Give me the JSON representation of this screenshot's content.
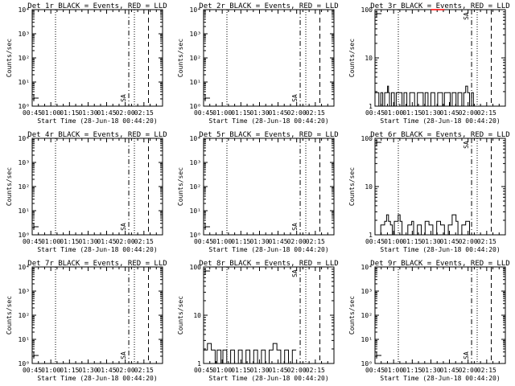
{
  "chart_data": [
    {
      "type": "line",
      "title": "Det 1r BLACK = Events, RED = LLD",
      "scale": "log",
      "yticks": [
        "10⁰",
        "10¹",
        "10²",
        "10³",
        "10⁴"
      ],
      "ylabel": "Counts/sec",
      "xlabel": "Start Time (28-Jun-18 00:44:20)",
      "xticks": [
        "00:45",
        "01:00",
        "01:15",
        "01:30",
        "01:45",
        "02:00",
        "02:15"
      ],
      "saa_label": "SA",
      "series": []
    },
    {
      "type": "line",
      "title": "Det 2r BLACK = Events, RED = LLD",
      "scale": "log",
      "yticks": [
        "10⁰",
        "10¹",
        "10²",
        "10³",
        "10⁴"
      ],
      "ylabel": "Counts/sec",
      "xlabel": "Start Time (28-Jun-18 00:44:20)",
      "xticks": [
        "00:45",
        "01:00",
        "01:15",
        "01:30",
        "01:45",
        "02:00",
        "02:15"
      ],
      "saa_label": "SA",
      "series": []
    },
    {
      "type": "line",
      "title": "Det 3r BLACK = Events, RED = LLD",
      "scale": "log",
      "yticks": [
        "1",
        "10",
        "100"
      ],
      "ylabel": "Counts/sec",
      "xlabel": "Start Time (28-Jun-18 00:44:20)",
      "xticks": [
        "00:45",
        "01:00",
        "01:15",
        "01:30",
        "01:45",
        "02:00",
        "02:15"
      ],
      "saa_label": "SA",
      "series": [
        {
          "color": "#000000",
          "points": [
            [
              0,
              1.9
            ],
            [
              3,
              1.9
            ],
            [
              4,
              1
            ],
            [
              6,
              1.9
            ],
            [
              8,
              1
            ],
            [
              10,
              1.9
            ],
            [
              13,
              2.6
            ],
            [
              14,
              1.9
            ],
            [
              15,
              1
            ],
            [
              17,
              1.9
            ],
            [
              20,
              1
            ],
            [
              22,
              1.9
            ],
            [
              26,
              1.9
            ],
            [
              28,
              1
            ],
            [
              30,
              1.9
            ],
            [
              33,
              1
            ],
            [
              36,
              1.9
            ],
            [
              39,
              1.9
            ],
            [
              41,
              1
            ],
            [
              44,
              1.9
            ],
            [
              48,
              1.9
            ],
            [
              50,
              1
            ],
            [
              52,
              1.9
            ],
            [
              55,
              1
            ],
            [
              58,
              1.9
            ],
            [
              62,
              1
            ],
            [
              65,
              1.9
            ],
            [
              68,
              1.9
            ],
            [
              70,
              1
            ],
            [
              72,
              1.9
            ],
            [
              76,
              1.9
            ],
            [
              78,
              1
            ],
            [
              80,
              1.9
            ],
            [
              84,
              1
            ],
            [
              86,
              1.9
            ],
            [
              90,
              1
            ],
            [
              92,
              1.9
            ],
            [
              94,
              2.6
            ],
            [
              96,
              1.9
            ],
            [
              98,
              1
            ],
            [
              100,
              1.9
            ],
            [
              102,
              1
            ]
          ]
        },
        {
          "color": "#ff0000",
          "points": [
            [
              58,
              100
            ],
            [
              72,
              100
            ]
          ]
        }
      ]
    },
    {
      "type": "line",
      "title": "Det 4r BLACK = Events, RED = LLD",
      "scale": "log",
      "yticks": [
        "10⁰",
        "10¹",
        "10²",
        "10³",
        "10⁴"
      ],
      "ylabel": "Counts/sec",
      "xlabel": "Start Time (28-Jun-18 00:44:20)",
      "xticks": [
        "00:45",
        "01:00",
        "01:15",
        "01:30",
        "01:45",
        "02:00",
        "02:15"
      ],
      "saa_label": "SA",
      "series": []
    },
    {
      "type": "line",
      "title": "Det 5r BLACK = Events, RED = LLD",
      "scale": "log",
      "yticks": [
        "10⁰",
        "10¹",
        "10²",
        "10³",
        "10⁴"
      ],
      "ylabel": "Counts/sec",
      "xlabel": "Start Time (28-Jun-18 00:44:20)",
      "xticks": [
        "00:45",
        "01:00",
        "01:15",
        "01:30",
        "01:45",
        "02:00",
        "02:15"
      ],
      "saa_label": "SA",
      "series": []
    },
    {
      "type": "line",
      "title": "Det 6r BLACK = Events, RED = LLD",
      "scale": "log",
      "yticks": [
        "1",
        "10",
        "100"
      ],
      "ylabel": "Counts/sec",
      "xlabel": "Start Time (28-Jun-18 00:44:20)",
      "xticks": [
        "00:45",
        "01:00",
        "01:15",
        "01:30",
        "01:45",
        "02:00",
        "02:15"
      ],
      "saa_label": "SA",
      "series": [
        {
          "color": "#000000",
          "points": [
            [
              0,
              1
            ],
            [
              4,
              1
            ],
            [
              6,
              1.6
            ],
            [
              10,
              1.9
            ],
            [
              12,
              2.6
            ],
            [
              14,
              1.9
            ],
            [
              16,
              1.6
            ],
            [
              18,
              1
            ],
            [
              20,
              1.9
            ],
            [
              24,
              2.6
            ],
            [
              26,
              1.9
            ],
            [
              28,
              1
            ],
            [
              32,
              1
            ],
            [
              34,
              1.6
            ],
            [
              38,
              1.9
            ],
            [
              40,
              1
            ],
            [
              44,
              1.6
            ],
            [
              48,
              1
            ],
            [
              52,
              1.9
            ],
            [
              56,
              1.6
            ],
            [
              60,
              1
            ],
            [
              64,
              1.9
            ],
            [
              68,
              1.6
            ],
            [
              72,
              1
            ],
            [
              76,
              1.6
            ],
            [
              80,
              2.6
            ],
            [
              84,
              1.9
            ],
            [
              86,
              1
            ],
            [
              90,
              1.6
            ],
            [
              94,
              1.9
            ],
            [
              98,
              1
            ]
          ]
        }
      ]
    },
    {
      "type": "line",
      "title": "Det 7r BLACK = Events, RED = LLD",
      "scale": "log",
      "yticks": [
        "10⁰",
        "10¹",
        "10²",
        "10³",
        "10⁴"
      ],
      "ylabel": "Counts/sec",
      "xlabel": "Start Time (28-Jun-18 00:44:20)",
      "xticks": [
        "00:45",
        "01:00",
        "01:15",
        "01:30",
        "01:45",
        "02:00",
        "02:15"
      ],
      "saa_label": "SA",
      "series": []
    },
    {
      "type": "line",
      "title": "Det 8r BLACK = Events, RED = LLD",
      "scale": "log",
      "yticks": [
        "1",
        "10",
        "100"
      ],
      "ylabel": "Counts/sec",
      "xlabel": "Start Time (28-Jun-18 00:44:20)",
      "xticks": [
        "00:45",
        "01:00",
        "01:15",
        "01:30",
        "01:45",
        "02:00",
        "02:15"
      ],
      "saa_label": "SA",
      "series": [
        {
          "color": "#000000",
          "points": [
            [
              0,
              1.9
            ],
            [
              4,
              2.6
            ],
            [
              8,
              1.9
            ],
            [
              12,
              1
            ],
            [
              14,
              1.9
            ],
            [
              18,
              1
            ],
            [
              20,
              1.9
            ],
            [
              24,
              1
            ],
            [
              28,
              1.9
            ],
            [
              32,
              1
            ],
            [
              36,
              1.9
            ],
            [
              40,
              1
            ],
            [
              44,
              1.9
            ],
            [
              48,
              1
            ],
            [
              52,
              1.9
            ],
            [
              56,
              1
            ],
            [
              60,
              1.9
            ],
            [
              64,
              1
            ],
            [
              68,
              1.9
            ],
            [
              72,
              2.6
            ],
            [
              76,
              1.9
            ],
            [
              80,
              1
            ],
            [
              84,
              1.9
            ],
            [
              88,
              1
            ],
            [
              92,
              1.9
            ],
            [
              96,
              1.9
            ]
          ]
        }
      ]
    },
    {
      "type": "line",
      "title": "Det 9r BLACK = Events, RED = LLD",
      "scale": "log",
      "yticks": [
        "10⁰",
        "10¹",
        "10²",
        "10³",
        "10⁴"
      ],
      "ylabel": "Counts/sec",
      "xlabel": "Start Time (28-Jun-18 00:44:20)",
      "xticks": [
        "00:45",
        "01:00",
        "01:15",
        "01:30",
        "01:45",
        "02:00",
        "02:15"
      ],
      "saa_label": "SA",
      "series": []
    }
  ]
}
